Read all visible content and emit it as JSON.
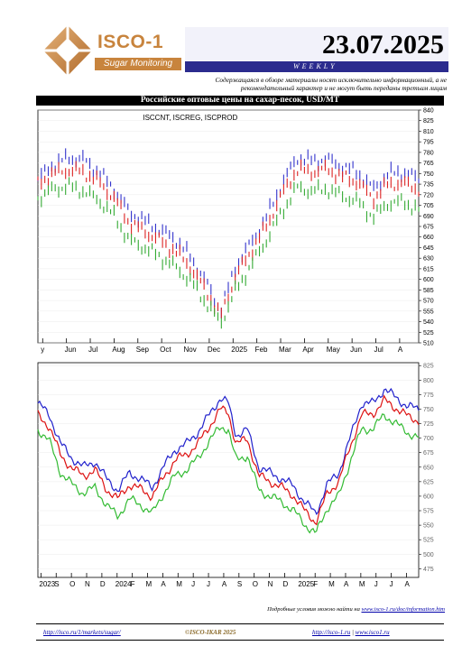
{
  "header": {
    "logo_text": "ISCO-1",
    "logo_subtitle": "Sugar Monitoring",
    "date": "23.07.2025",
    "frequency": "WEEKLY",
    "disclaimer": "Содержащаяся в обзоре материалы носят исключительно информационный, а не рекомендательный характер и не могут быть переданы третьим лицам",
    "colors": {
      "logo": "#c8843d",
      "weekly_bar": "#2b2b8e"
    }
  },
  "title_bar": "Российские оптовые цены на сахар-песок, USD/MT",
  "chart_data": [
    {
      "type": "line",
      "style": "ohlc-bars",
      "title": "ISCCNT, ISCREG, ISCPROD",
      "x_tick_labels": [
        "y",
        "Jun",
        "Jul",
        "Aug",
        "Sep",
        "Oct",
        "Nov",
        "Dec",
        "2025",
        "Feb",
        "Mar",
        "Apr",
        "May",
        "Jun",
        "Jul",
        "A"
      ],
      "ylim": [
        510,
        840
      ],
      "y_ticks": [
        510,
        525,
        540,
        555,
        570,
        585,
        600,
        615,
        630,
        645,
        660,
        675,
        690,
        705,
        720,
        735,
        750,
        765,
        780,
        795,
        810,
        825,
        840
      ],
      "series": [
        {
          "color": "#3333cc",
          "x": [
            0,
            0.04,
            0.08,
            0.12,
            0.16,
            0.2,
            0.24,
            0.28,
            0.32,
            0.36,
            0.4,
            0.44,
            0.48,
            0.52,
            0.56,
            0.6,
            0.64,
            0.68,
            0.72,
            0.76,
            0.8,
            0.84,
            0.88,
            0.92,
            0.96,
            1.0
          ],
          "values": [
            742,
            763,
            772,
            770,
            752,
            728,
            695,
            683,
            670,
            658,
            632,
            598,
            555,
            620,
            652,
            688,
            735,
            772,
            768,
            770,
            760,
            752,
            728,
            750,
            752,
            742
          ]
        },
        {
          "color": "#dd2222",
          "x": [
            0,
            0.04,
            0.08,
            0.12,
            0.16,
            0.2,
            0.24,
            0.28,
            0.32,
            0.36,
            0.4,
            0.44,
            0.48,
            0.52,
            0.56,
            0.6,
            0.64,
            0.68,
            0.72,
            0.76,
            0.8,
            0.84,
            0.88,
            0.92,
            0.96,
            1.0
          ],
          "values": [
            735,
            750,
            755,
            752,
            738,
            715,
            680,
            668,
            655,
            640,
            618,
            585,
            548,
            605,
            640,
            675,
            720,
            755,
            752,
            756,
            745,
            738,
            714,
            735,
            736,
            728
          ]
        },
        {
          "color": "#33aa33",
          "x": [
            0,
            0.04,
            0.08,
            0.12,
            0.16,
            0.2,
            0.24,
            0.28,
            0.32,
            0.36,
            0.4,
            0.44,
            0.48,
            0.52,
            0.56,
            0.6,
            0.64,
            0.68,
            0.72,
            0.76,
            0.8,
            0.84,
            0.88,
            0.92,
            0.96,
            1.0
          ],
          "values": [
            715,
            728,
            732,
            725,
            712,
            690,
            655,
            645,
            632,
            618,
            598,
            568,
            538,
            585,
            620,
            655,
            695,
            730,
            725,
            728,
            718,
            710,
            688,
            708,
            710,
            698
          ]
        }
      ]
    },
    {
      "type": "line",
      "x_tick_labels": [
        "2023",
        "S",
        "O",
        "N",
        "D",
        "2024",
        "F",
        "M",
        "A",
        "M",
        "J",
        "J",
        "A",
        "S",
        "O",
        "N",
        "D",
        "2025",
        "F",
        "M",
        "A",
        "M",
        "J",
        "J",
        "A"
      ],
      "ylim": [
        460,
        830
      ],
      "y_ticks": [
        475,
        500,
        525,
        550,
        575,
        600,
        625,
        650,
        675,
        700,
        725,
        750,
        775,
        800,
        825
      ],
      "y_tick_labels": [
        "475",
        "500",
        "525",
        "550",
        "575",
        "600",
        "625",
        "650",
        "675",
        "700",
        "725",
        "750",
        "775",
        "800",
        "825"
      ],
      "series": [
        {
          "color": "#2222cc",
          "x": [
            0,
            0.03,
            0.06,
            0.09,
            0.12,
            0.15,
            0.18,
            0.21,
            0.24,
            0.27,
            0.3,
            0.33,
            0.36,
            0.39,
            0.42,
            0.45,
            0.48,
            0.5,
            0.52,
            0.55,
            0.58,
            0.61,
            0.64,
            0.67,
            0.7,
            0.73,
            0.76,
            0.79,
            0.82,
            0.85,
            0.88,
            0.91,
            0.94,
            0.97,
            1.0
          ],
          "values": [
            760,
            740,
            690,
            665,
            650,
            660,
            630,
            610,
            640,
            630,
            615,
            650,
            680,
            690,
            710,
            740,
            770,
            760,
            705,
            715,
            650,
            640,
            630,
            618,
            590,
            570,
            620,
            640,
            700,
            760,
            760,
            785,
            770,
            755,
            750
          ]
        },
        {
          "color": "#dd1111",
          "x": [
            0,
            0.03,
            0.06,
            0.09,
            0.12,
            0.15,
            0.18,
            0.21,
            0.24,
            0.27,
            0.3,
            0.33,
            0.36,
            0.39,
            0.42,
            0.45,
            0.48,
            0.5,
            0.52,
            0.55,
            0.58,
            0.61,
            0.64,
            0.67,
            0.7,
            0.73,
            0.76,
            0.79,
            0.82,
            0.85,
            0.88,
            0.91,
            0.94,
            0.97,
            1.0
          ],
          "values": [
            740,
            720,
            670,
            648,
            635,
            645,
            612,
            595,
            620,
            612,
            600,
            632,
            662,
            672,
            690,
            720,
            750,
            745,
            690,
            698,
            635,
            625,
            615,
            602,
            575,
            555,
            605,
            625,
            685,
            740,
            742,
            765,
            752,
            738,
            730
          ]
        },
        {
          "color": "#33bb33",
          "x": [
            0,
            0.03,
            0.06,
            0.09,
            0.12,
            0.15,
            0.18,
            0.21,
            0.24,
            0.27,
            0.3,
            0.33,
            0.36,
            0.39,
            0.42,
            0.45,
            0.48,
            0.5,
            0.52,
            0.55,
            0.58,
            0.61,
            0.64,
            0.67,
            0.7,
            0.73,
            0.76,
            0.79,
            0.82,
            0.85,
            0.88,
            0.91,
            0.94,
            0.97,
            1.0
          ],
          "values": [
            715,
            695,
            640,
            620,
            605,
            615,
            585,
            565,
            595,
            585,
            570,
            605,
            635,
            645,
            665,
            695,
            720,
            715,
            662,
            670,
            610,
            600,
            590,
            576,
            552,
            535,
            580,
            600,
            660,
            715,
            716,
            740,
            725,
            710,
            700
          ]
        }
      ]
    }
  ],
  "footer": {
    "source_prefix": "Подробные условия можно найти на",
    "source_link": "www.isco-1.ru/doc/information.htm",
    "url1": "http://isco.ru/1/markets/sugar/",
    "brand": "©ISCO-IKAR 2025",
    "url2": "http://isco-1.ru",
    "url3": "www.isco1.ru"
  }
}
